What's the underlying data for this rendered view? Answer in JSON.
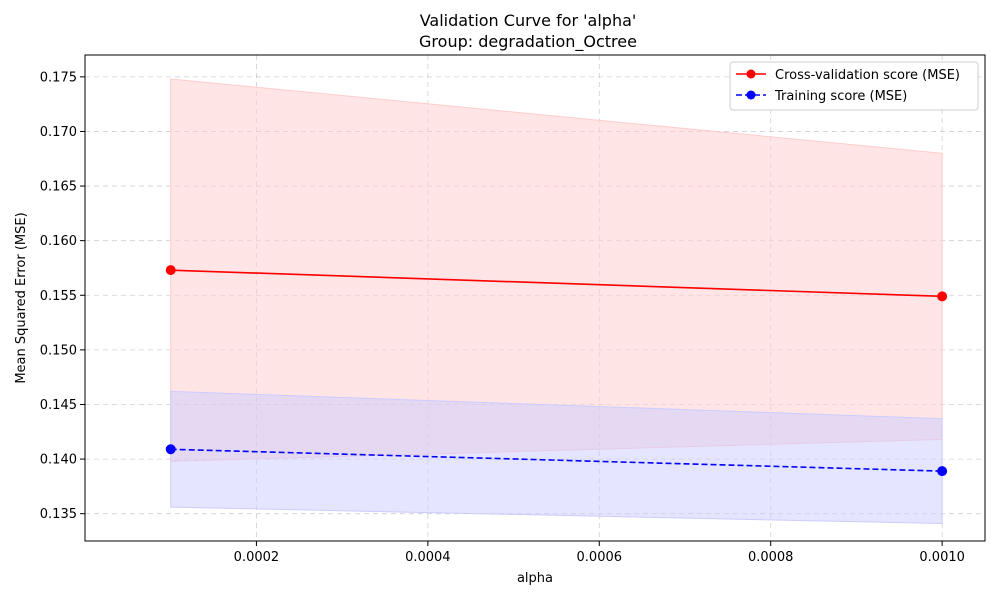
{
  "chart_data": {
    "type": "line",
    "title": "Validation Curve for 'alpha'",
    "subtitle": "Group: degradation_Octree",
    "xlabel": "alpha",
    "ylabel": "Mean Squared Error (MSE)",
    "xlim": [
      0.0,
      0.00105
    ],
    "ylim": [
      0.1325,
      0.177
    ],
    "x": [
      0.0001,
      0.001
    ],
    "xticks": [
      0.0002,
      0.0004,
      0.0006,
      0.0008,
      0.001
    ],
    "xtick_labels": [
      "0.0002",
      "0.0004",
      "0.0006",
      "0.0008",
      "0.0010"
    ],
    "yticks": [
      0.135,
      0.14,
      0.145,
      0.15,
      0.155,
      0.16,
      0.165,
      0.17,
      0.175
    ],
    "ytick_labels": [
      "0.135",
      "0.140",
      "0.145",
      "0.150",
      "0.155",
      "0.160",
      "0.165",
      "0.170",
      "0.175"
    ],
    "grid": true,
    "legend_position": "top-right",
    "series": [
      {
        "name": "Cross-validation score (MSE)",
        "values": [
          0.1573,
          0.1549
        ],
        "band_upper": [
          0.1748,
          0.168
        ],
        "band_lower": [
          0.1398,
          0.1418
        ],
        "color": "#ff0000",
        "line_style": "solid",
        "band_color": "#ffcccc"
      },
      {
        "name": "Training score (MSE)",
        "values": [
          0.1409,
          0.1389
        ],
        "band_upper": [
          0.1462,
          0.1437
        ],
        "band_lower": [
          0.1356,
          0.1341
        ],
        "color": "#0000ff",
        "line_style": "dashed",
        "band_color": "#ccccff"
      }
    ]
  }
}
